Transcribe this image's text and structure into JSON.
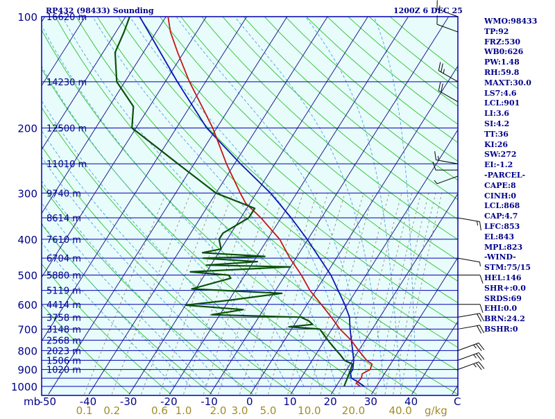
{
  "header": {
    "title": "RP432 (98433) Sounding",
    "valid_time": "1200Z  6 DEC 25"
  },
  "indices": [
    "WMO:98433",
    "TP:92",
    "FRZ:530",
    "WB0:626",
    "PW:1.48",
    "RH:59.8",
    "MAXT:30.0",
    "LS7:4.6",
    "LCL:901",
    "LI:3.6",
    "SI:4.2",
    "TT:36",
    "KI:26",
    "SW:272",
    "EI:-1.2",
    "-PARCEL-",
    "CAPE:8",
    "CINH:0",
    "LCL:868",
    "CAP:4.7",
    "LFC:853",
    "EL:843",
    "MPL:823",
    "-WIND-",
    "STM:75/15",
    "HEL:146",
    "SHR+:0.0",
    "SRDS:69",
    "EHI:0.0",
    "BRN:24.2",
    "BSHR:0"
  ],
  "colors": {
    "background": "#e8fcfc",
    "isobar": "#0000b4",
    "isotherm": "#1e1e8c",
    "dry_adiabat": "#3cc83c",
    "moist_adiabat": "#5aaadc",
    "mixing_ratio": "#a09678",
    "temperature": "#c81414",
    "dewpoint": "#0a500a",
    "parcel": "#0a14b4",
    "labels": "#00008b",
    "mixing_label": "#a08c28",
    "wind": "#000000"
  },
  "chart_data": {
    "type": "skew-t",
    "pressure_labels": [
      {
        "p": 100,
        "label": "100",
        "height": "16620 m"
      },
      {
        "p": 150,
        "label": "",
        "height": "14230 m"
      },
      {
        "p": 200,
        "label": "200",
        "height": "12500 m"
      },
      {
        "p": 250,
        "label": "",
        "height": "11010 m"
      },
      {
        "p": 300,
        "label": "300",
        "height": "9740 m"
      },
      {
        "p": 350,
        "label": "",
        "height": "8614 m"
      },
      {
        "p": 400,
        "label": "400",
        "height": "7610 m"
      },
      {
        "p": 450,
        "label": "",
        "height": "6704 m"
      },
      {
        "p": 500,
        "label": "500",
        "height": "5880 m"
      },
      {
        "p": 550,
        "label": "",
        "height": "5119 m"
      },
      {
        "p": 600,
        "label": "600",
        "height": "4414 m"
      },
      {
        "p": 650,
        "label": "",
        "height": "3758 m"
      },
      {
        "p": 700,
        "label": "700",
        "height": "3148 m"
      },
      {
        "p": 750,
        "label": "",
        "height": "2568 m"
      },
      {
        "p": 800,
        "label": "800",
        "height": "2023 m"
      },
      {
        "p": 850,
        "label": "",
        "height": "1506 m"
      },
      {
        "p": 900,
        "label": "900",
        "height": "1020 m"
      },
      {
        "p": 950,
        "label": "",
        "height": ""
      },
      {
        "p": 1000,
        "label": "1000",
        "height": ""
      }
    ],
    "pressure_range": [
      100,
      1000
    ],
    "temperature_ticks": [
      {
        "t": -50,
        "label": "-50"
      },
      {
        "t": -40,
        "label": "-40"
      },
      {
        "t": -30,
        "label": "-30"
      },
      {
        "t": -20,
        "label": "-20"
      },
      {
        "t": -10,
        "label": "-10"
      },
      {
        "t": 0,
        "label": "0"
      },
      {
        "t": 10,
        "label": "10"
      },
      {
        "t": 20,
        "label": "20"
      },
      {
        "t": 30,
        "label": "30"
      },
      {
        "t": 40,
        "label": "40"
      }
    ],
    "x_unit_label": "mb",
    "temp_unit_label": "C",
    "mixing_ratio_labels": [
      {
        "w": 0.1,
        "label": "0.1"
      },
      {
        "w": 0.2,
        "label": "0.2"
      },
      {
        "w": 0.6,
        "label": "0.6"
      },
      {
        "w": 1.0,
        "label": "1.0"
      },
      {
        "w": 2.0,
        "label": "2.0"
      },
      {
        "w": 3.0,
        "label": "3.0"
      },
      {
        "w": 5.0,
        "label": "5.0"
      },
      {
        "w": 10.0,
        "label": "10.0"
      },
      {
        "w": 20.0,
        "label": "20.0"
      },
      {
        "w": 40.0,
        "label": "40.0"
      }
    ],
    "mixing_unit_label": "g/kg",
    "temperature_profile": [
      [
        1000,
        26.0
      ],
      [
        980,
        24.5
      ],
      [
        950,
        25.0
      ],
      [
        925,
        24.5
      ],
      [
        900,
        25.8
      ],
      [
        870,
        25.4
      ],
      [
        850,
        23.5
      ],
      [
        800,
        20.0
      ],
      [
        750,
        16.5
      ],
      [
        700,
        12.0
      ],
      [
        650,
        8.0
      ],
      [
        600,
        3.5
      ],
      [
        550,
        -1.5
      ],
      [
        500,
        -6.0
      ],
      [
        450,
        -11.5
      ],
      [
        400,
        -17.0
      ],
      [
        350,
        -25.0
      ],
      [
        320,
        -31.0
      ],
      [
        300,
        -34.0
      ],
      [
        250,
        -42.0
      ],
      [
        200,
        -51.0
      ],
      [
        175,
        -57.0
      ],
      [
        150,
        -64.0
      ],
      [
        125,
        -71.5
      ],
      [
        110,
        -76.5
      ],
      [
        100,
        -79.5
      ]
    ],
    "dewpoint_profile": [
      [
        1000,
        22.0
      ],
      [
        950,
        21.5
      ],
      [
        900,
        21.0
      ],
      [
        870,
        20.5
      ],
      [
        850,
        18.0
      ],
      [
        820,
        16.0
      ],
      [
        800,
        14.5
      ],
      [
        760,
        11.5
      ],
      [
        740,
        10.0
      ],
      [
        700,
        7.0
      ],
      [
        690,
        -1.0
      ],
      [
        680,
        4.5
      ],
      [
        665,
        3.0
      ],
      [
        650,
        0.5
      ],
      [
        640,
        -22.0
      ],
      [
        620,
        -15.0
      ],
      [
        603,
        -30.0
      ],
      [
        585,
        -20.0
      ],
      [
        560,
        -8.0
      ],
      [
        545,
        -31.0
      ],
      [
        510,
        -23.0
      ],
      [
        500,
        -24.0
      ],
      [
        490,
        -34.0
      ],
      [
        475,
        -10.0
      ],
      [
        470,
        -31.0
      ],
      [
        460,
        -19.0
      ],
      [
        450,
        -33.0
      ],
      [
        445,
        -18.0
      ],
      [
        435,
        -34.0
      ],
      [
        425,
        -30.0
      ],
      [
        400,
        -32.0
      ],
      [
        385,
        -32.0
      ],
      [
        350,
        -28.0
      ],
      [
        330,
        -28.0
      ],
      [
        300,
        -40.0
      ],
      [
        250,
        -54.0
      ],
      [
        200,
        -71.0
      ],
      [
        175,
        -74.0
      ],
      [
        150,
        -82.0
      ],
      [
        125,
        -87.0
      ],
      [
        110,
        -88.0
      ],
      [
        100,
        -89.0
      ]
    ],
    "parcel_profile": [
      [
        1000,
        27.0
      ],
      [
        970,
        24.5
      ],
      [
        950,
        22.5
      ],
      [
        920,
        21.5
      ],
      [
        900,
        21.5
      ],
      [
        850,
        20.3
      ],
      [
        800,
        18.5
      ],
      [
        700,
        14.5
      ],
      [
        650,
        12.5
      ],
      [
        600,
        9.3
      ],
      [
        500,
        1.3
      ],
      [
        400,
        -10.2
      ],
      [
        350,
        -17.5
      ],
      [
        300,
        -26.5
      ],
      [
        250,
        -38.5
      ],
      [
        200,
        -52.5
      ],
      [
        150,
        -67.0
      ],
      [
        100,
        -86.5
      ]
    ],
    "wind_barbs": [
      {
        "p": 100,
        "speed_kt": 15,
        "dir": 290
      },
      {
        "p": 110,
        "speed_kt": 10,
        "dir": 290
      },
      {
        "p": 150,
        "speed_kt": 25,
        "dir": 300
      },
      {
        "p": 170,
        "speed_kt": 20,
        "dir": 300
      },
      {
        "p": 250,
        "speed_kt": 15,
        "dir": 280
      },
      {
        "p": 260,
        "speed_kt": 10,
        "dir": 270
      },
      {
        "p": 270,
        "speed_kt": 5,
        "dir": 250
      },
      {
        "p": 350,
        "speed_kt": 15,
        "dir": 100
      },
      {
        "p": 450,
        "speed_kt": 5,
        "dir": 100
      },
      {
        "p": 500,
        "speed_kt": 10,
        "dir": 90
      },
      {
        "p": 600,
        "speed_kt": 10,
        "dir": 90
      },
      {
        "p": 650,
        "speed_kt": 20,
        "dir": 80
      },
      {
        "p": 700,
        "speed_kt": 20,
        "dir": 80
      },
      {
        "p": 800,
        "speed_kt": 25,
        "dir": 70
      },
      {
        "p": 850,
        "speed_kt": 25,
        "dir": 70
      },
      {
        "p": 900,
        "speed_kt": 25,
        "dir": 70
      }
    ],
    "grid": true
  }
}
